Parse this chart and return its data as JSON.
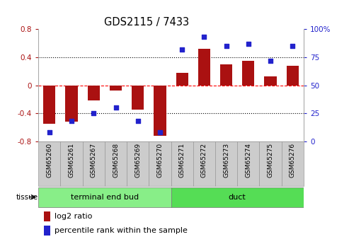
{
  "title": "GDS2115 / 7433",
  "categories": [
    "GSM65260",
    "GSM65261",
    "GSM65267",
    "GSM65268",
    "GSM65269",
    "GSM65270",
    "GSM65271",
    "GSM65272",
    "GSM65273",
    "GSM65274",
    "GSM65275",
    "GSM65276"
  ],
  "log2_ratio": [
    -0.55,
    -0.52,
    -0.22,
    -0.07,
    -0.35,
    -0.72,
    0.18,
    0.52,
    0.3,
    0.35,
    0.13,
    0.28
  ],
  "percentile_rank": [
    8,
    18,
    25,
    30,
    18,
    8,
    82,
    93,
    85,
    87,
    72,
    85
  ],
  "bar_color": "#aa1111",
  "dot_color": "#2222cc",
  "tissue_groups": [
    {
      "label": "terminal end bud",
      "start": 0,
      "end": 6,
      "color": "#88ee88"
    },
    {
      "label": "duct",
      "start": 6,
      "end": 12,
      "color": "#55dd55"
    }
  ],
  "ylim_left": [
    -0.8,
    0.8
  ],
  "ylim_right": [
    0,
    100
  ],
  "yticks_left": [
    -0.8,
    -0.4,
    0.0,
    0.4,
    0.8
  ],
  "ytick_labels_left": [
    "-0.8",
    "-0.4",
    "0",
    "0.4",
    "0.8"
  ],
  "yticks_right": [
    0,
    25,
    50,
    75,
    100
  ],
  "ytick_labels_right": [
    "0",
    "25",
    "50",
    "75",
    "100%"
  ],
  "hlines": [
    0.4,
    0.0,
    -0.4
  ],
  "hline_colors": [
    "black",
    "red",
    "black"
  ],
  "hline_styles": [
    "dotted",
    "dashed",
    "dotted"
  ],
  "plot_bg": "#ffffff",
  "tick_box_color": "#cccccc",
  "tick_box_edge": "#999999",
  "legend_items": [
    {
      "label": "log2 ratio",
      "color": "#aa1111"
    },
    {
      "label": "percentile rank within the sample",
      "color": "#2222cc"
    }
  ],
  "tissue_label": "tissue",
  "bar_width": 0.55
}
